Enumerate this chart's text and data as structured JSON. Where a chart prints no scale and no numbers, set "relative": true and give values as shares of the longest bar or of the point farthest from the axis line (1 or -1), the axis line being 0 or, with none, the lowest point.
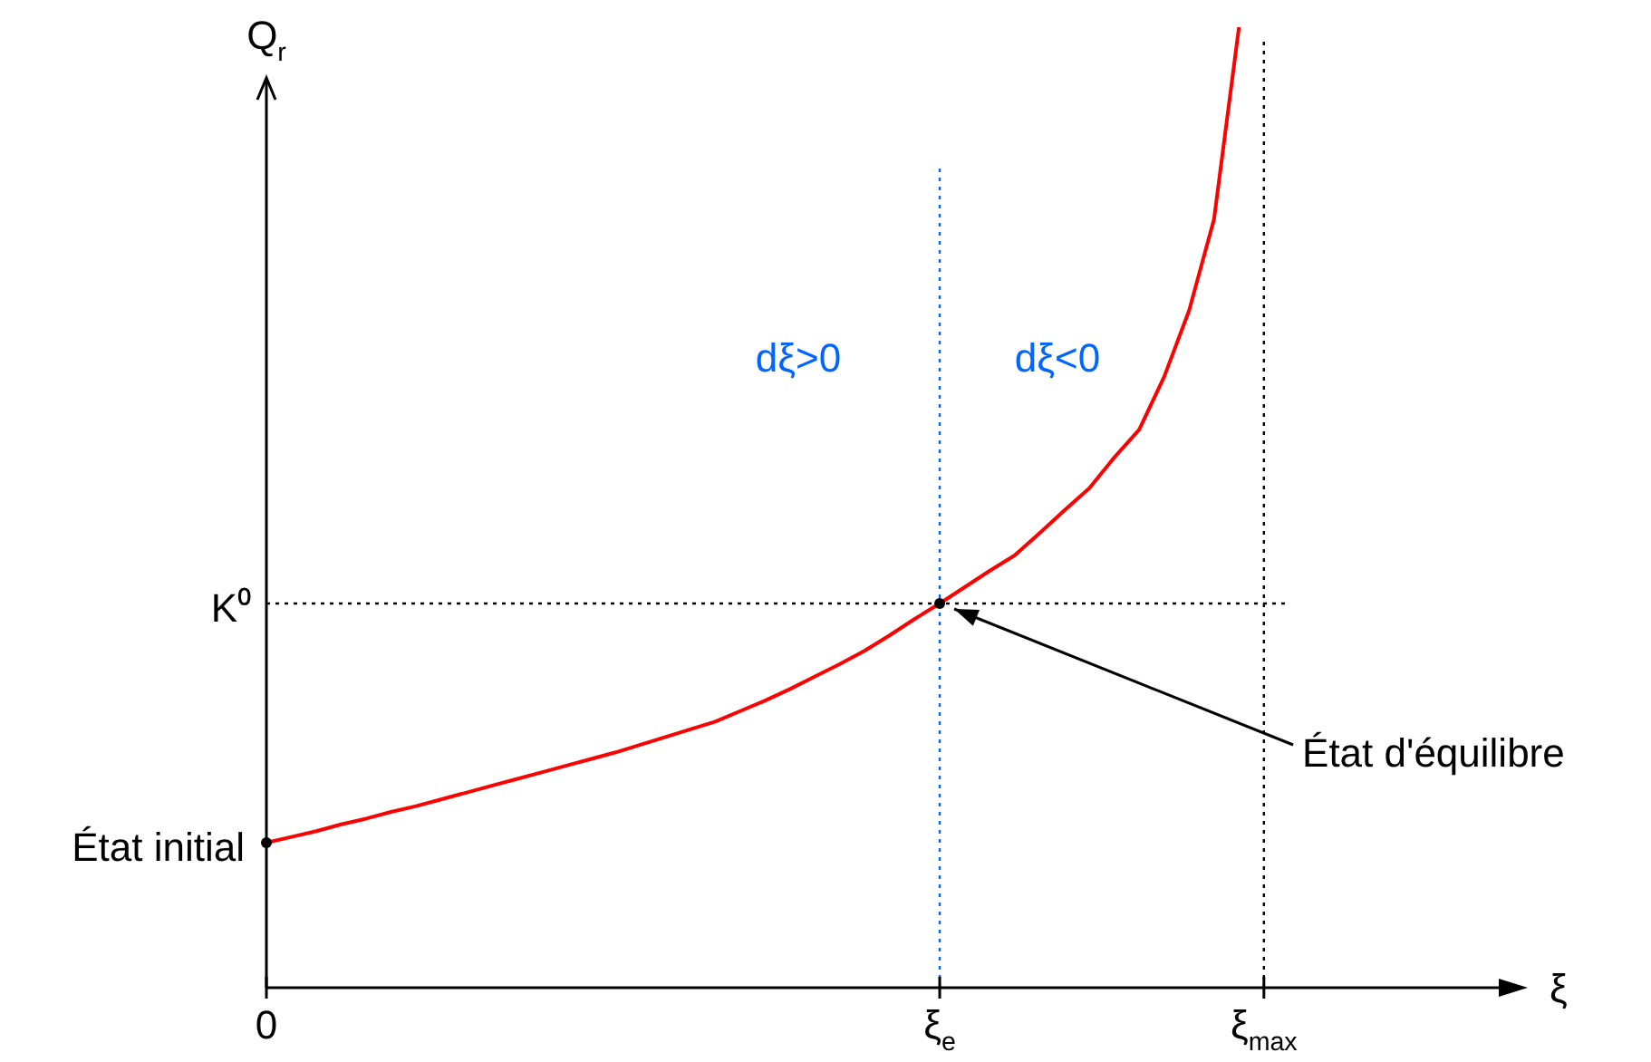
{
  "chart_data": {
    "type": "line",
    "relative": true,
    "xlabel": "ξ",
    "ylabel": "Q$_{r}$",
    "categories": [
      "0",
      null,
      null,
      null,
      null,
      null,
      null,
      null,
      null,
      null,
      null,
      null,
      null,
      null,
      null,
      null,
      null,
      null,
      null,
      null,
      null,
      null,
      null,
      null,
      null,
      null,
      null,
      "ξ$_{e}$",
      null,
      null,
      null,
      null,
      null,
      null,
      null,
      null,
      null,
      null,
      null,
      null,
      "ξ$_{max}$",
      null,
      null,
      null,
      null,
      null,
      null,
      null,
      null,
      null,
      null
    ],
    "series": [
      {
        "color": "#ff0000",
        "values": [
          0.151,
          0.157,
          0.163,
          0.17,
          0.176,
          0.183,
          0.189,
          0.196,
          0.203,
          0.21,
          0.217,
          0.224,
          0.231,
          0.238,
          0.245,
          0.253,
          0.261,
          0.269,
          0.277,
          0.288,
          0.299,
          0.311,
          0.324,
          0.337,
          0.351,
          0.367,
          0.384,
          0.4,
          0.417,
          0.434,
          0.45,
          0.473,
          0.497,
          0.52,
          0.552,
          0.581,
          0.636,
          0.705,
          0.8,
          1.0,
          null,
          null,
          null,
          null,
          null,
          null,
          null,
          null,
          null,
          null,
          null
        ]
      }
    ],
    "ref_lines": [
      {
        "axis": "y",
        "value": 0.4,
        "label": "K⁰",
        "color": "#000000",
        "line_style": "dotted"
      },
      {
        "axis": "x",
        "value": "ξ$_{e}$",
        "color": "#0066ff",
        "line_style": "dotted"
      },
      {
        "axis": "x",
        "value": "ξ$_{max}$",
        "color": "#000000",
        "line_style": "dotted"
      }
    ],
    "annotations": [
      {
        "text": "État initial",
        "x": "0",
        "y": 0.151
      },
      {
        "text": "État d'équilibre",
        "x": "ξ$_{e}$",
        "y": 0.4
      },
      "dξ>0",
      "dξ<0"
    ],
    "legend": false
  }
}
